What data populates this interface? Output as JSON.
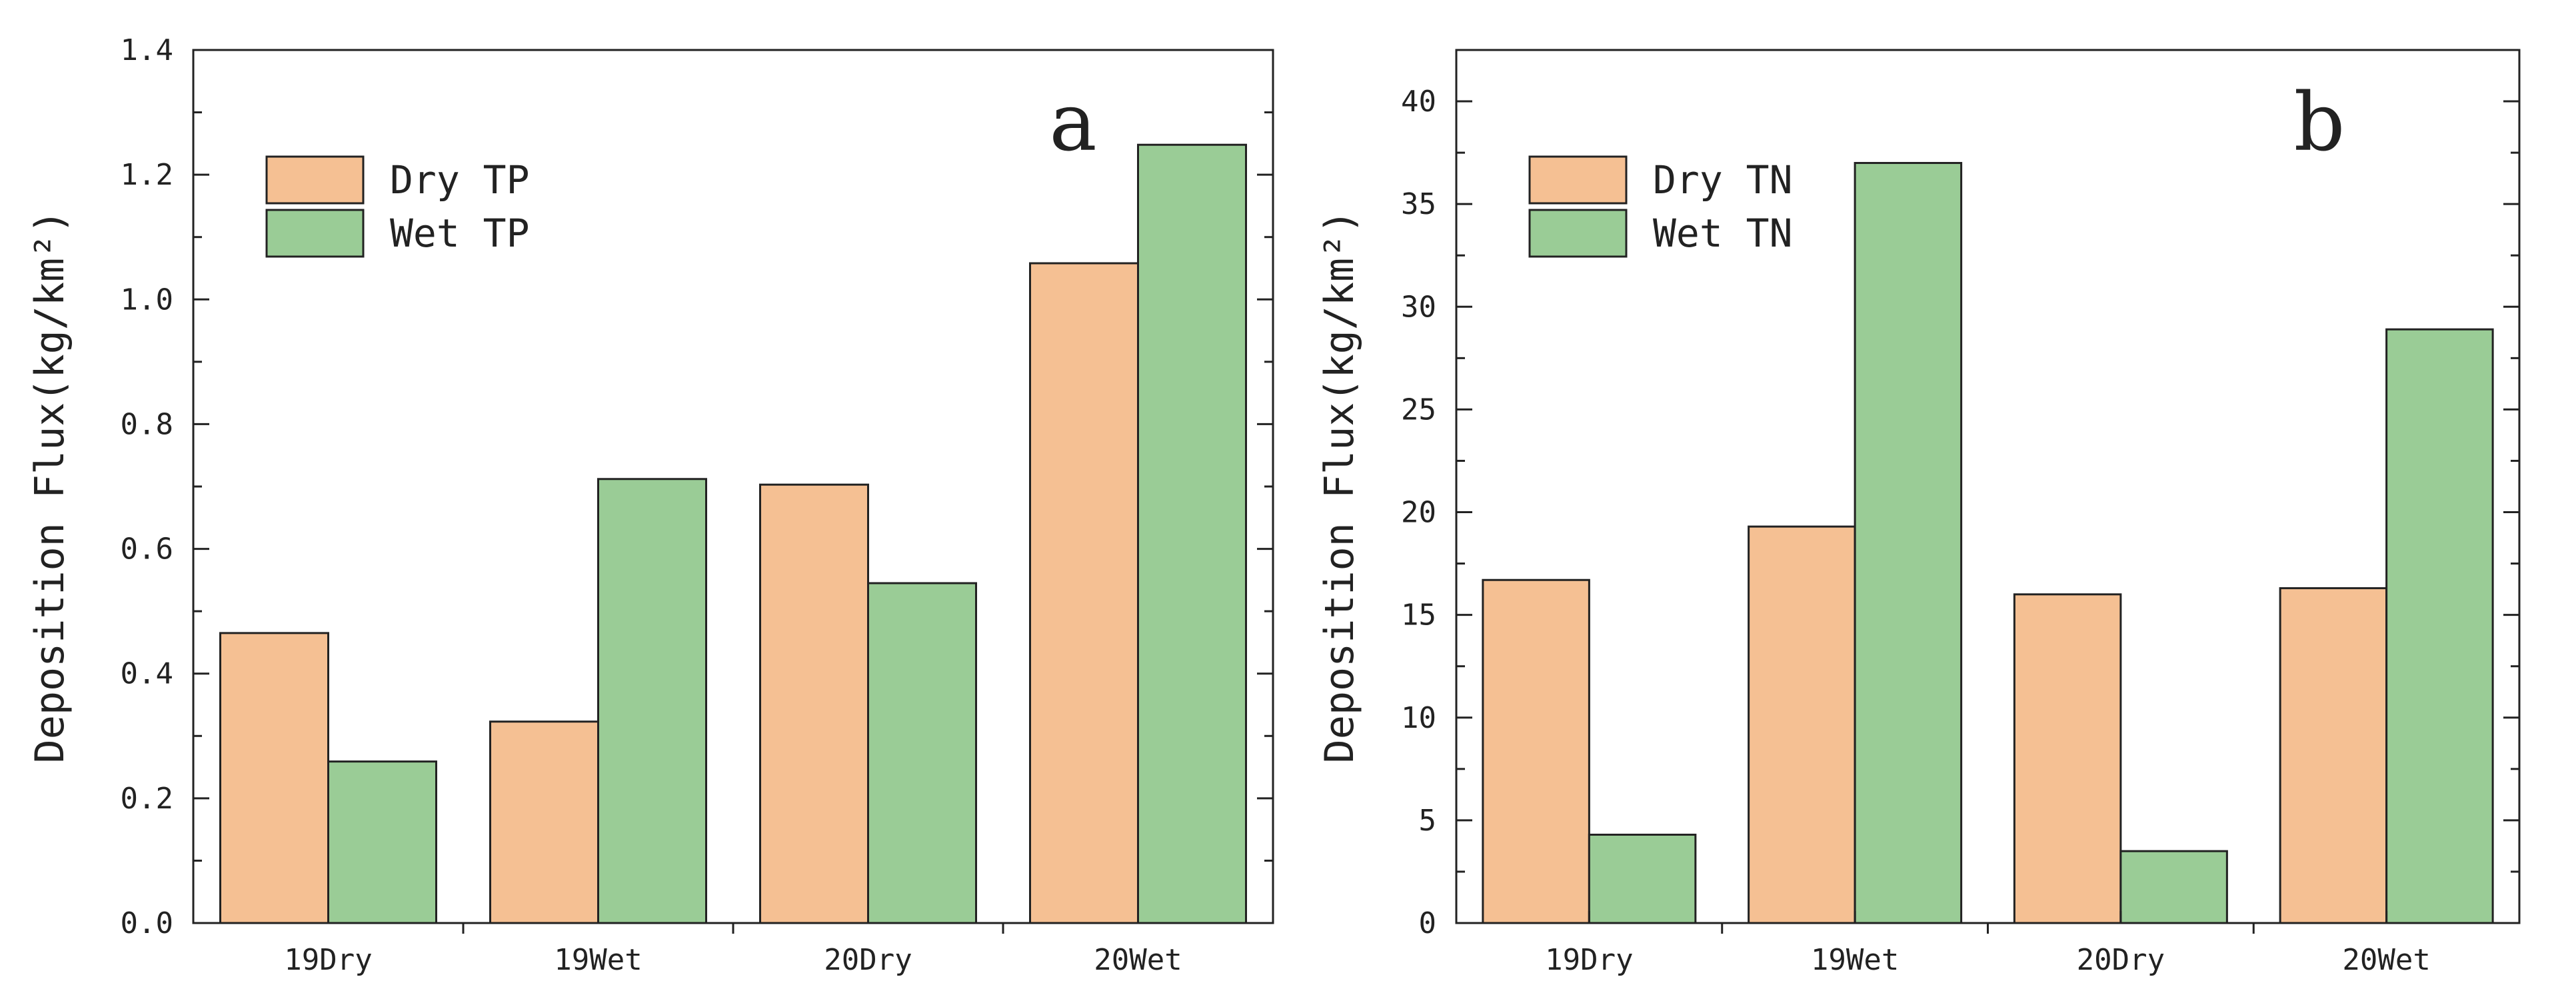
{
  "chart_data": [
    {
      "type": "bar",
      "panel_label": "a",
      "categories": [
        "19Dry",
        "19Wet",
        "20Dry",
        "20Wet"
      ],
      "series": [
        {
          "name": "Dry TP",
          "values": [
            0.465,
            0.323,
            0.703,
            1.058
          ],
          "color": "#f5c093"
        },
        {
          "name": "Wet TP",
          "values": [
            0.259,
            0.712,
            0.545,
            1.248
          ],
          "color": "#9acc96"
        }
      ],
      "ylabel": "Deposition Flux(kg/km²)",
      "ylim": [
        0,
        1.4
      ],
      "yticks": [
        "0.0",
        "0.2",
        "0.4",
        "0.6",
        "0.8",
        "1.0",
        "1.2",
        "1.4"
      ],
      "legend_position": "top-left",
      "grid": false
    },
    {
      "type": "bar",
      "panel_label": "b",
      "categories": [
        "19Dry",
        "19Wet",
        "20Dry",
        "20Wet"
      ],
      "series": [
        {
          "name": "Dry TN",
          "values": [
            16.7,
            19.3,
            16.0,
            16.3
          ],
          "color": "#f5c093"
        },
        {
          "name": "Wet TN",
          "values": [
            4.3,
            37.0,
            3.5,
            28.9
          ],
          "color": "#9acc96"
        }
      ],
      "ylabel": "Deposition Flux(kg/km²)",
      "ylim": [
        0,
        42.5
      ],
      "yticks": [
        "0",
        "5",
        "10",
        "15",
        "20",
        "25",
        "30",
        "35",
        "40"
      ],
      "legend_position": "top-left",
      "grid": false
    }
  ]
}
